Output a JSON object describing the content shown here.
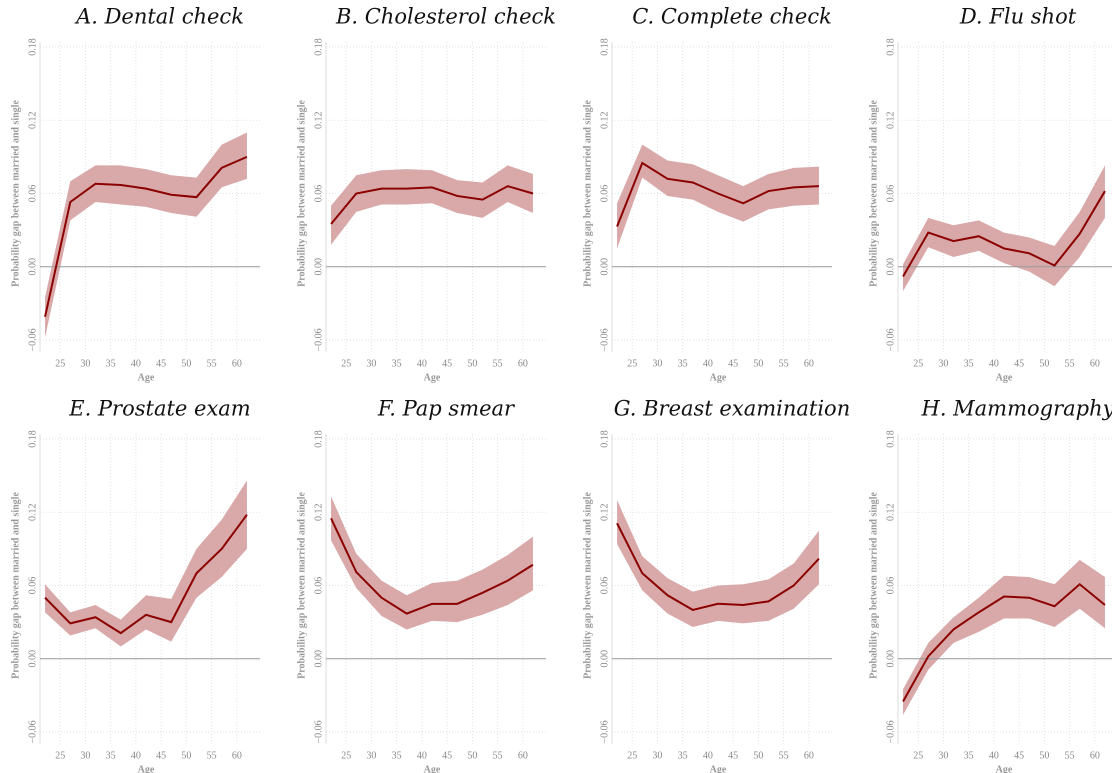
{
  "chart_data": [
    {
      "type": "line",
      "title": "A. Dental check",
      "xlabel": "Age",
      "ylabel": "Probability gap between married and single",
      "x": [
        22,
        27,
        32,
        37,
        42,
        47,
        52,
        57,
        62
      ],
      "values": [
        -0.041,
        0.053,
        0.068,
        0.067,
        0.064,
        0.059,
        0.057,
        0.081,
        0.09
      ],
      "ci_lower": [
        -0.058,
        0.038,
        0.053,
        0.051,
        0.049,
        0.044,
        0.041,
        0.065,
        0.072
      ],
      "ci_upper": [
        -0.025,
        0.07,
        0.083,
        0.083,
        0.08,
        0.075,
        0.073,
        0.1,
        0.11
      ],
      "line_color": "#8b0000",
      "band_color": "#d9a9aa",
      "reference_line": 0,
      "grid": true,
      "xlim": [
        21,
        63
      ],
      "xticks": [
        25,
        30,
        35,
        40,
        45,
        50,
        55,
        60
      ],
      "ylim": [
        -0.06,
        0.18
      ],
      "yticks": [
        {
          "value": -0.06,
          "label": "−0.06"
        },
        {
          "value": 0,
          "label": "0.00"
        },
        0.06,
        0.12,
        0.18
      ]
    },
    {
      "type": "line",
      "title": "B. Cholesterol check",
      "xlabel": "Age",
      "ylabel": "Probability gap between married and single",
      "x": [
        22,
        27,
        32,
        37,
        42,
        47,
        52,
        57,
        62
      ],
      "values": [
        0.035,
        0.06,
        0.064,
        0.064,
        0.065,
        0.058,
        0.055,
        0.066,
        0.06
      ],
      "ci_lower": [
        0.018,
        0.045,
        0.051,
        0.051,
        0.052,
        0.044,
        0.04,
        0.053,
        0.044
      ],
      "ci_upper": [
        0.05,
        0.075,
        0.079,
        0.08,
        0.079,
        0.071,
        0.069,
        0.083,
        0.076
      ],
      "line_color": "#8b0000",
      "band_color": "#d9a9aa",
      "reference_line": 0,
      "grid": true,
      "xlim": [
        21,
        63
      ],
      "xticks": [
        25,
        30,
        35,
        40,
        45,
        50,
        55,
        60
      ],
      "ylim": [
        -0.06,
        0.18
      ],
      "yticks": [
        {
          "value": -0.06,
          "label": "−0.06"
        },
        {
          "value": 0,
          "label": "0.00"
        },
        0.06,
        0.12,
        0.18
      ]
    },
    {
      "type": "line",
      "title": "C. Complete check",
      "xlabel": "Age",
      "ylabel": "Probability gap between married and single",
      "x": [
        22,
        27,
        32,
        37,
        42,
        47,
        52,
        57,
        62
      ],
      "values": [
        0.033,
        0.085,
        0.072,
        0.069,
        0.06,
        0.052,
        0.062,
        0.065,
        0.066
      ],
      "ci_lower": [
        0.015,
        0.073,
        0.058,
        0.055,
        0.045,
        0.037,
        0.047,
        0.05,
        0.051
      ],
      "ci_upper": [
        0.052,
        0.1,
        0.087,
        0.084,
        0.075,
        0.066,
        0.076,
        0.081,
        0.082
      ],
      "line_color": "#8b0000",
      "band_color": "#d9a9aa",
      "reference_line": 0,
      "grid": true,
      "xlim": [
        21,
        63
      ],
      "xticks": [
        25,
        30,
        35,
        40,
        45,
        50,
        55,
        60
      ],
      "ylim": [
        -0.06,
        0.18
      ],
      "yticks": [
        {
          "value": -0.06,
          "label": "−0.06"
        },
        {
          "value": 0,
          "label": "0.00"
        },
        0.06,
        0.12,
        0.18
      ]
    },
    {
      "type": "line",
      "title": "D. Flu shot",
      "xlabel": "Age",
      "ylabel": "Probability gap between married and single",
      "x": [
        22,
        27,
        32,
        37,
        42,
        47,
        52,
        57,
        62
      ],
      "values": [
        -0.008,
        0.028,
        0.021,
        0.025,
        0.015,
        0.011,
        0.001,
        0.027,
        0.062
      ],
      "ci_lower": [
        -0.02,
        0.016,
        0.008,
        0.013,
        0.003,
        -0.004,
        -0.016,
        0.008,
        0.04
      ],
      "ci_upper": [
        0.002,
        0.04,
        0.034,
        0.038,
        0.028,
        0.024,
        0.017,
        0.045,
        0.083
      ],
      "line_color": "#8b0000",
      "band_color": "#d9a9aa",
      "reference_line": 0,
      "grid": true,
      "xlim": [
        21,
        63
      ],
      "xticks": [
        25,
        30,
        35,
        40,
        45,
        50,
        55,
        60
      ],
      "ylim": [
        -0.06,
        0.18
      ],
      "yticks": [
        {
          "value": -0.06,
          "label": "−0.06"
        },
        {
          "value": 0,
          "label": "0.00"
        },
        0.06,
        0.12,
        0.18
      ]
    },
    {
      "type": "line",
      "title": "E. Prostate exam",
      "xlabel": "Age",
      "ylabel": "Probability gap between married and single",
      "x": [
        22,
        27,
        32,
        37,
        42,
        47,
        52,
        57,
        62
      ],
      "values": [
        0.05,
        0.029,
        0.034,
        0.021,
        0.036,
        0.03,
        0.07,
        0.09,
        0.118
      ],
      "ci_lower": [
        0.038,
        0.019,
        0.025,
        0.01,
        0.024,
        0.014,
        0.05,
        0.067,
        0.09
      ],
      "ci_upper": [
        0.061,
        0.038,
        0.044,
        0.032,
        0.052,
        0.049,
        0.09,
        0.114,
        0.146
      ],
      "line_color": "#8b0000",
      "band_color": "#d9a9aa",
      "reference_line": 0,
      "grid": true,
      "xlim": [
        21,
        63
      ],
      "xticks": [
        25,
        30,
        35,
        40,
        45,
        50,
        55,
        60
      ],
      "ylim": [
        -0.06,
        0.18
      ],
      "yticks": [
        {
          "value": -0.06,
          "label": "−0.06"
        },
        {
          "value": 0,
          "label": "0.00"
        },
        0.06,
        0.12,
        0.18
      ]
    },
    {
      "type": "line",
      "title": "F. Pap smear",
      "xlabel": "Age",
      "ylabel": "Probability gap between married and single",
      "x": [
        22,
        27,
        32,
        37,
        42,
        47,
        52,
        57,
        62
      ],
      "values": [
        0.115,
        0.071,
        0.05,
        0.037,
        0.045,
        0.045,
        0.054,
        0.064,
        0.077
      ],
      "ci_lower": [
        0.097,
        0.058,
        0.035,
        0.024,
        0.031,
        0.03,
        0.036,
        0.044,
        0.056
      ],
      "ci_upper": [
        0.133,
        0.086,
        0.064,
        0.052,
        0.062,
        0.064,
        0.073,
        0.085,
        0.1
      ],
      "line_color": "#8b0000",
      "band_color": "#d9a9aa",
      "reference_line": 0,
      "grid": true,
      "xlim": [
        21,
        63
      ],
      "xticks": [
        25,
        30,
        35,
        40,
        45,
        50,
        55,
        60
      ],
      "ylim": [
        -0.06,
        0.18
      ],
      "yticks": [
        {
          "value": -0.06,
          "label": "−0.06"
        },
        {
          "value": 0,
          "label": "0.00"
        },
        0.06,
        0.12,
        0.18
      ]
    },
    {
      "type": "line",
      "title": "G. Breast examination",
      "xlabel": "Age",
      "ylabel": "Probability gap between married and single",
      "x": [
        22,
        27,
        32,
        37,
        42,
        47,
        52,
        57,
        62
      ],
      "values": [
        0.111,
        0.07,
        0.052,
        0.04,
        0.045,
        0.044,
        0.047,
        0.06,
        0.082
      ],
      "ci_lower": [
        0.094,
        0.056,
        0.037,
        0.026,
        0.031,
        0.029,
        0.031,
        0.041,
        0.061
      ],
      "ci_upper": [
        0.13,
        0.084,
        0.066,
        0.055,
        0.06,
        0.061,
        0.065,
        0.078,
        0.105
      ],
      "line_color": "#8b0000",
      "band_color": "#d9a9aa",
      "reference_line": 0,
      "grid": true,
      "xlim": [
        21,
        63
      ],
      "xticks": [
        25,
        30,
        35,
        40,
        45,
        50,
        55,
        60
      ],
      "ylim": [
        -0.06,
        0.18
      ],
      "yticks": [
        {
          "value": -0.06,
          "label": "−0.06"
        },
        {
          "value": 0,
          "label": "0.00"
        },
        0.06,
        0.12,
        0.18
      ]
    },
    {
      "type": "line",
      "title": "H. Mammography",
      "xlabel": "Age",
      "ylabel": "Probability gap between married and single",
      "x": [
        22,
        27,
        32,
        37,
        42,
        47,
        52,
        57,
        62
      ],
      "values": [
        -0.035,
        0.002,
        0.024,
        0.038,
        0.051,
        0.05,
        0.043,
        0.061,
        0.044
      ],
      "ci_lower": [
        -0.046,
        -0.009,
        0.013,
        0.022,
        0.033,
        0.033,
        0.026,
        0.041,
        0.025
      ],
      "ci_upper": [
        -0.025,
        0.013,
        0.034,
        0.05,
        0.068,
        0.067,
        0.061,
        0.081,
        0.067
      ],
      "line_color": "#8b0000",
      "band_color": "#d9a9aa",
      "reference_line": 0,
      "grid": true,
      "xlim": [
        21,
        63
      ],
      "xticks": [
        25,
        30,
        35,
        40,
        45,
        50,
        55,
        60
      ],
      "ylim": [
        -0.06,
        0.18
      ],
      "yticks": [
        {
          "value": -0.06,
          "label": "−0.06"
        },
        {
          "value": 0,
          "label": "0.00"
        },
        0.06,
        0.12,
        0.18
      ]
    }
  ]
}
